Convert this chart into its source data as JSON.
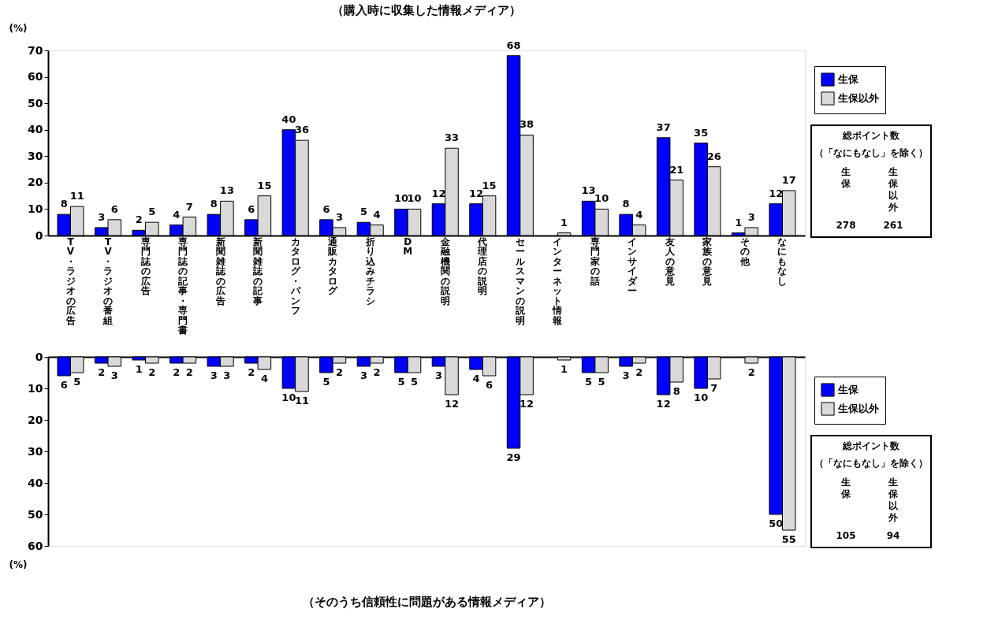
{
  "chart_data": [
    {
      "type": "bar",
      "title": "（購入時に収集した情報メディア）",
      "ylabel": "(%)",
      "categories": [
        "TV・ラジオの広告",
        "TV・ラジオの番組",
        "専門誌の広告",
        "専門誌の記事・専門書",
        "新聞雑誌の広告",
        "新聞雑誌の記事",
        "カタログ・パンフ",
        "通販カタログ",
        "折り込みチラシ",
        "DM",
        "金融機関の説明",
        "代理店の説明",
        "セールスマンの説明",
        "インターネット情報",
        "専門家の話",
        "インサイダー",
        "友人の意見",
        "家族の意見",
        "その他",
        "なにもなし"
      ],
      "series": [
        {
          "name": "生保",
          "color": "#0000ff",
          "values": [
            8,
            3,
            2,
            4,
            8,
            6,
            40,
            6,
            5,
            10,
            12,
            12,
            68,
            null,
            13,
            8,
            37,
            35,
            1,
            12
          ]
        },
        {
          "name": "生保以外",
          "color": "#d9d9d9",
          "values": [
            11,
            6,
            5,
            7,
            13,
            15,
            36,
            3,
            4,
            10,
            33,
            15,
            38,
            1,
            10,
            4,
            21,
            26,
            3,
            17
          ]
        }
      ],
      "ylim": [
        0,
        70
      ],
      "yticks": [
        0,
        10,
        20,
        30,
        40,
        50,
        60,
        70
      ],
      "grid": false,
      "legend": "right",
      "data_labels": true,
      "annotations": [
        "総ポイント数",
        "（「なにもなし」を除く）",
        "生保",
        "生保以外",
        "278",
        "261"
      ]
    },
    {
      "type": "bar",
      "title": "（そのうち信頼性に問題がある情報メディア）",
      "ylabel": "(%)",
      "categories": [
        "TV・ラジオの広告",
        "TV・ラジオの番組",
        "専門誌の広告",
        "専門誌の記事・専門書",
        "新聞雑誌の広告",
        "新聞雑誌の記事",
        "カタログ・パンフ",
        "通販カタログ",
        "折り込みチラシ",
        "DM",
        "金融機関の説明",
        "代理店の説明",
        "セールスマンの説明",
        "インターネット情報",
        "専門家の話",
        "インサイダー",
        "友人の意見",
        "家族の意見",
        "その他",
        "なにもなし"
      ],
      "series": [
        {
          "name": "生保",
          "color": "#0000ff",
          "values": [
            6,
            2,
            1,
            2,
            3,
            2,
            10,
            5,
            3,
            5,
            3,
            4,
            29,
            null,
            5,
            3,
            12,
            10,
            null,
            50
          ]
        },
        {
          "name": "生保以外",
          "color": "#d9d9d9",
          "values": [
            5,
            3,
            2,
            2,
            3,
            4,
            11,
            2,
            2,
            5,
            12,
            6,
            12,
            1,
            5,
            2,
            8,
            7,
            2,
            55
          ]
        }
      ],
      "ylim": [
        60,
        0
      ],
      "yticks": [
        0,
        10,
        20,
        30,
        40,
        50,
        60
      ],
      "grid": false,
      "legend": "right",
      "data_labels": true,
      "tick_labels": "y",
      "annotations": [
        "総ポイント数",
        "（「なにもなし」を除く）",
        "生保",
        "生保以外",
        "105",
        "94"
      ]
    }
  ]
}
